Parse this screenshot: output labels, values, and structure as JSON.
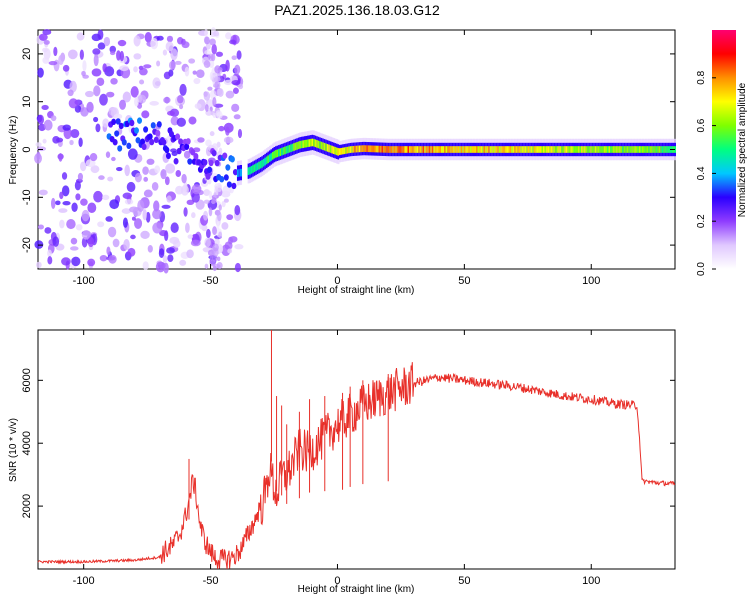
{
  "title": "PAZ1.2025.136.18.03.G12",
  "chart_data": [
    {
      "type": "heatmap",
      "xlabel": "Height of straight line (km)",
      "ylabel": "Frequency (Hz)",
      "xlim": [
        -118,
        133
      ],
      "ylim": [
        -25,
        25
      ],
      "xticks": [
        -100,
        -50,
        0,
        50,
        100
      ],
      "yticks": [
        -20,
        -10,
        0,
        10,
        20
      ],
      "colorbar": {
        "label": "Normalized spectral amplitude",
        "range": [
          0,
          1
        ],
        "ticks": [
          0.0,
          0.2,
          0.4,
          0.6,
          0.8
        ],
        "colormap": [
          "#ffffff",
          "#e0c8ff",
          "#8f3cff",
          "#2a00ff",
          "#00c8ff",
          "#00ff80",
          "#7fff00",
          "#ffff00",
          "#ff9000",
          "#ff0000",
          "#ff0070"
        ]
      },
      "ridge": {
        "x": [
          -85,
          -80,
          -75,
          -70,
          -65,
          -60,
          -55,
          -50,
          -45,
          -40,
          -35,
          -30,
          -25,
          -20,
          -15,
          -10,
          -5,
          0,
          5,
          10,
          20,
          40,
          60,
          80,
          100,
          120,
          133
        ],
        "y": [
          3,
          3.5,
          3,
          2.5,
          1,
          -1,
          -2,
          -3,
          -4,
          -5,
          -4.5,
          -3,
          -1,
          0,
          1,
          1.5,
          0.5,
          -0.5,
          0,
          0.2,
          0,
          0,
          0,
          0,
          0,
          0,
          0
        ],
        "amp": [
          0.35,
          0.4,
          0.35,
          0.3,
          0.3,
          0.3,
          0.3,
          0.3,
          0.35,
          0.4,
          0.5,
          0.55,
          0.6,
          0.6,
          0.65,
          0.7,
          0.7,
          0.75,
          0.8,
          0.85,
          0.9,
          0.85,
          0.8,
          0.75,
          0.7,
          0.65,
          0.6
        ]
      }
    },
    {
      "type": "line",
      "xlabel": "Height of straight line (km)",
      "ylabel": "SNR (10 * v/v)",
      "xlim": [
        -118,
        133
      ],
      "ylim": [
        0,
        7600
      ],
      "xticks": [
        -100,
        -50,
        0,
        50,
        100
      ],
      "yticks": [
        2000,
        4000,
        6000
      ],
      "color": "#e8302a",
      "series": [
        {
          "x": [
            -118,
            -100,
            -80,
            -70,
            -65,
            -62,
            -60,
            -58,
            -57,
            -56,
            -55,
            -54,
            -52,
            -50,
            -48,
            -45,
            -42,
            -40,
            -38,
            -35,
            -32,
            -30,
            -28,
            -27,
            -26,
            -25,
            -24,
            -22,
            -20,
            -18,
            -15,
            -12,
            -10,
            -5,
            0,
            5,
            10,
            20,
            30,
            40,
            50,
            60,
            70,
            80,
            90,
            100,
            110,
            118,
            119,
            120,
            125,
            133
          ],
          "y": [
            150,
            150,
            200,
            300,
            600,
            1000,
            1500,
            2200,
            2700,
            2400,
            1800,
            1200,
            700,
            400,
            200,
            150,
            200,
            300,
            500,
            1000,
            1500,
            2000,
            2500,
            3200,
            3000,
            2600,
            2400,
            2900,
            3000,
            3300,
            3800,
            3700,
            3800,
            4200,
            4600,
            4900,
            5200,
            5600,
            5900,
            6100,
            6000,
            5900,
            5800,
            5650,
            5500,
            5400,
            5250,
            5200,
            4200,
            2800,
            2750,
            2700
          ],
          "spikes": [
            {
              "x": -58.5,
              "y": 3500
            },
            {
              "x": -26,
              "y": 7600
            },
            {
              "x": -24,
              "y": 5500
            },
            {
              "x": -22,
              "y": 5200
            },
            {
              "x": -20,
              "y": 4600
            },
            {
              "x": -15,
              "y": 5000
            },
            {
              "x": -11,
              "y": 5400
            },
            {
              "x": -5,
              "y": 5500
            },
            {
              "x": 2,
              "y": 5600
            },
            {
              "x": 5,
              "y": 5800
            },
            {
              "x": 10,
              "y": 6000
            },
            {
              "x": 20,
              "y": 6200
            }
          ]
        }
      ]
    }
  ]
}
